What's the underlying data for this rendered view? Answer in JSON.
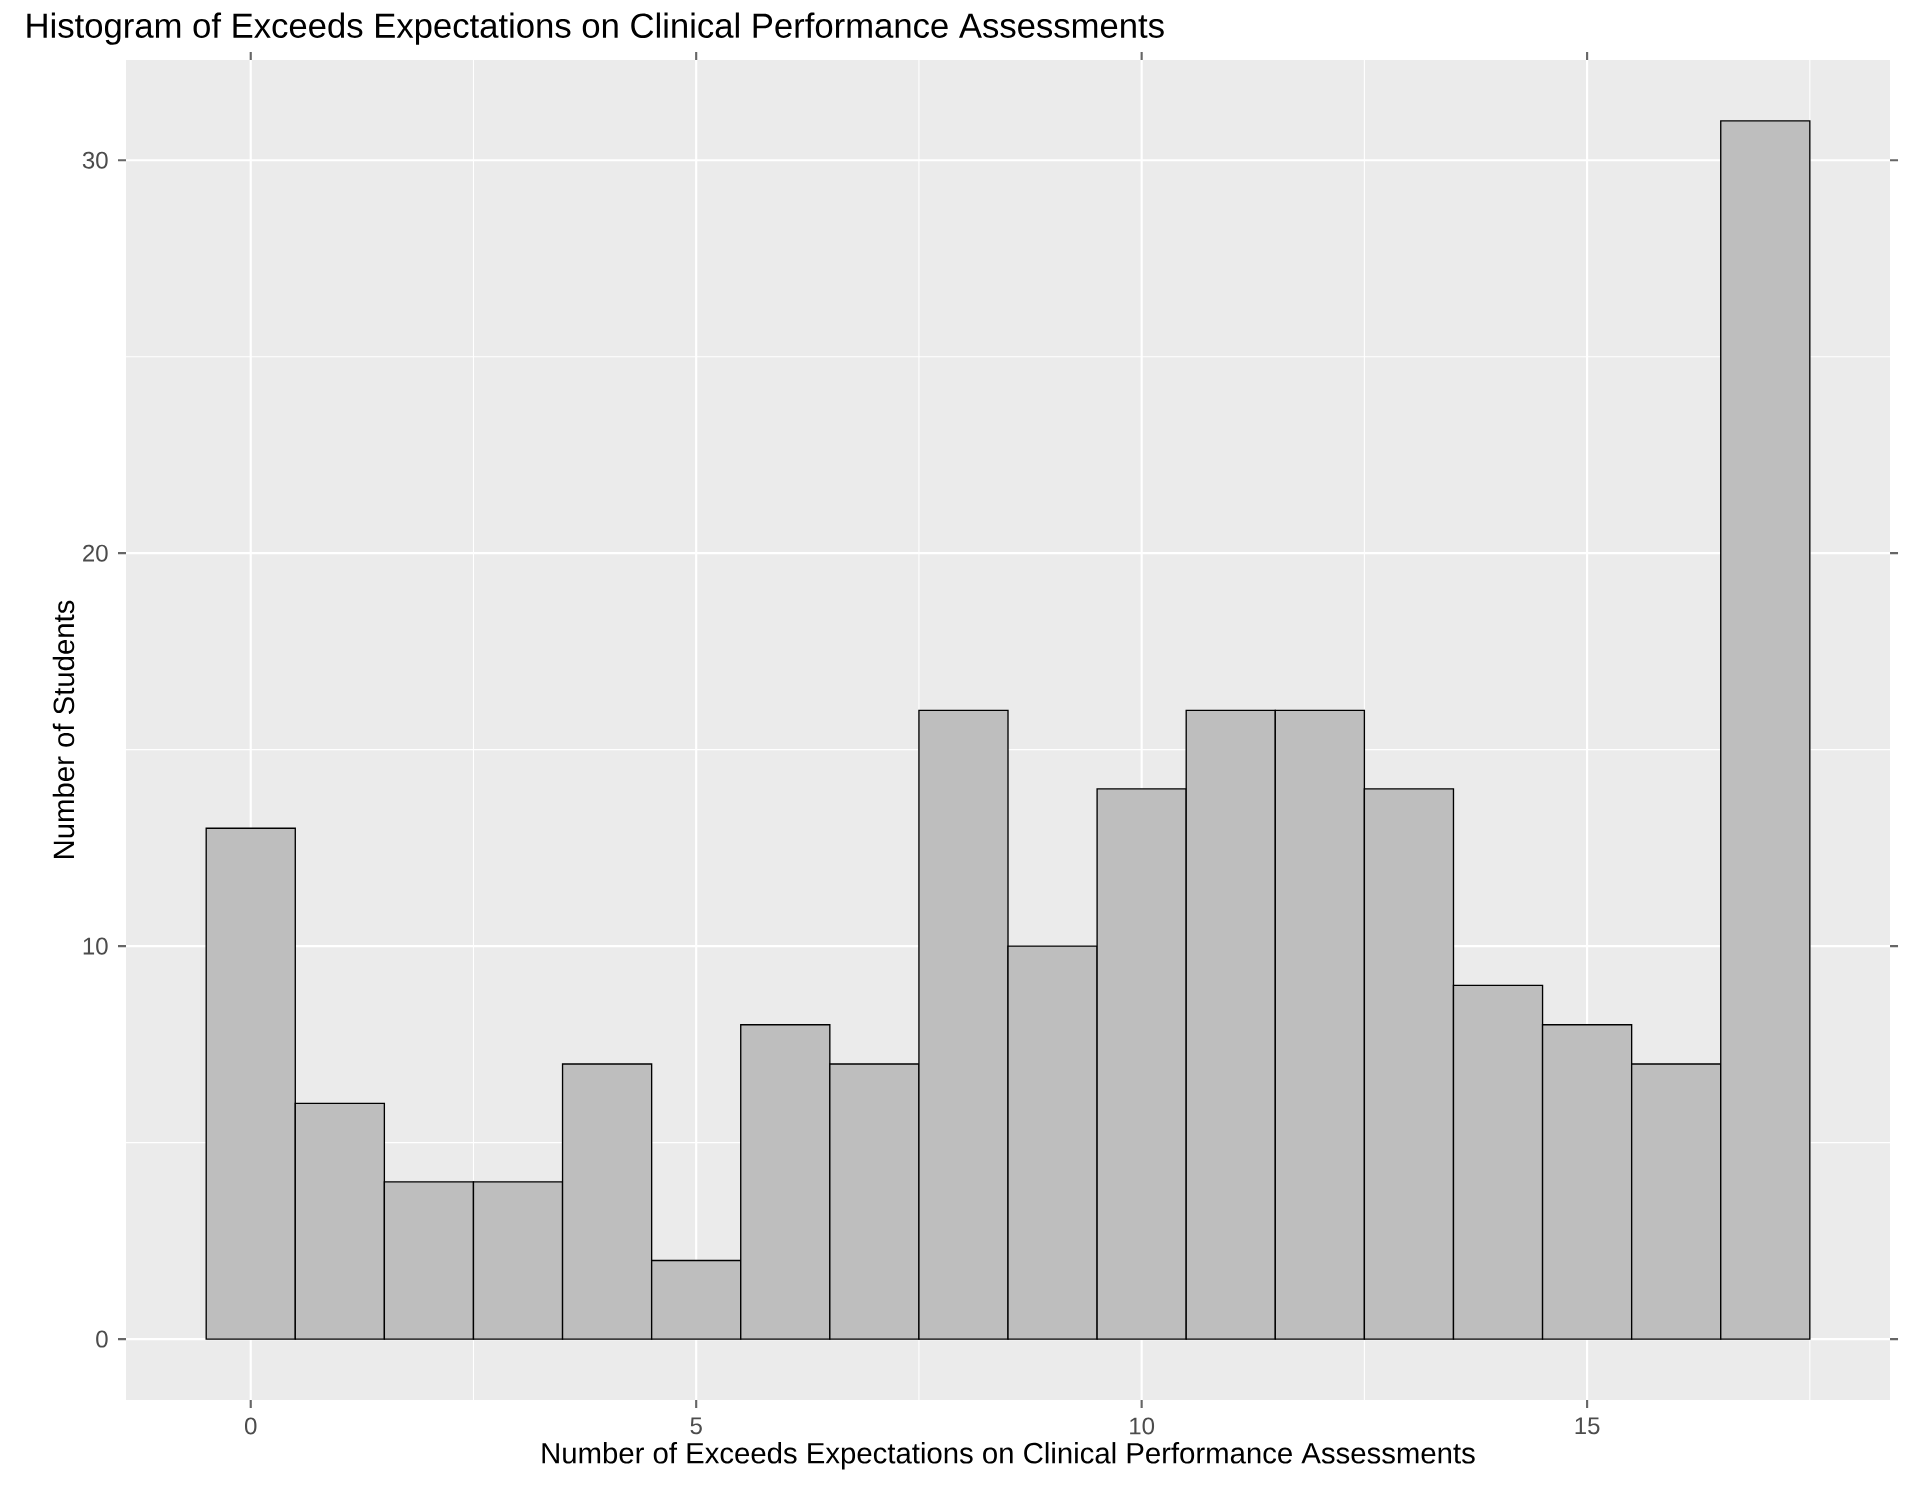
{
  "chart_data": {
    "type": "histogram",
    "title": "Histogram of Exceeds Expectations on Clinical Performance Assessments",
    "xlabel": "Number of Exceeds Expectations on Clinical Performance Assessments",
    "ylabel": "Number of Students",
    "bins": [
      -0.5,
      0.5,
      1.5,
      2.5,
      3.5,
      4.5,
      5.5,
      6.5,
      7.5,
      8.5,
      9.5,
      10.5,
      11.5,
      12.5,
      13.5,
      14.5,
      15.5,
      16.5,
      17.5
    ],
    "values": [
      13,
      6,
      4,
      4,
      7,
      2,
      8,
      7,
      16,
      10,
      14,
      16,
      16,
      14,
      9,
      8,
      7,
      31
    ],
    "color": "#bebebe",
    "xlim": [
      -1.4,
      18.4
    ],
    "ylim": [
      -1.55,
      32.55
    ],
    "xticks": [
      0,
      5,
      10,
      15
    ],
    "yticks": [
      0,
      10,
      20,
      30
    ],
    "grid": true
  }
}
